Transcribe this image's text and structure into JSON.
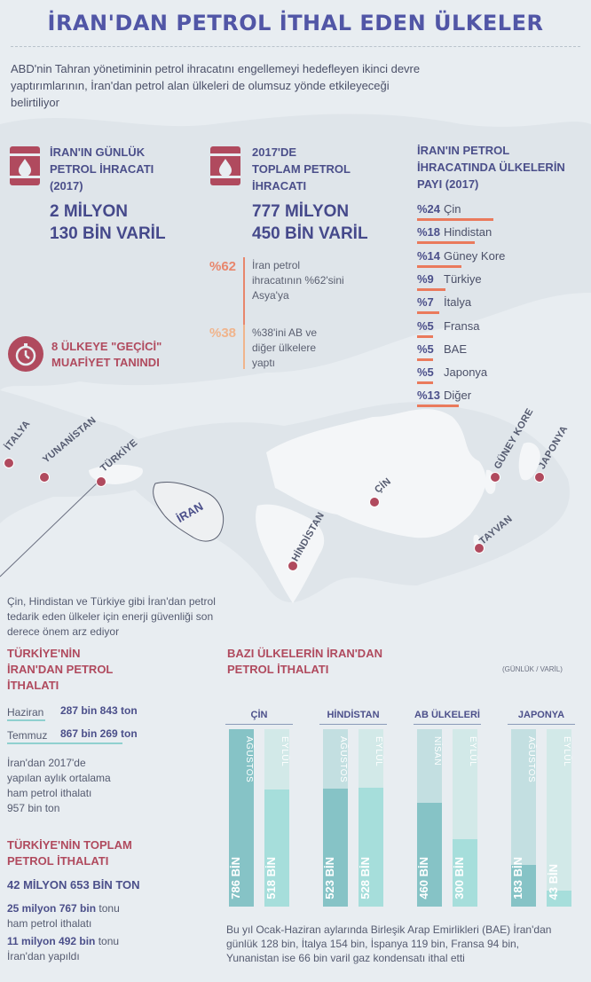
{
  "title": "İRAN'DAN PETROL İTHAL EDEN ÜLKELER",
  "intro": "ABD'nin Tahran yönetiminin petrol ihracatını engellemeyi hedefleyen ikinci devre yaptırımlarının, İran'dan petrol alan ülkeleri de olumsuz yönde etkileyeceği belirtiliyor",
  "daily_export": {
    "label_1": "İRAN'IN GÜNLÜK",
    "label_2": "PETROL İHRACATI",
    "label_3": "(2017)",
    "value_1": "2 MİLYON",
    "value_2": "130 BİN VARİL"
  },
  "total_export": {
    "label_1": "2017'DE",
    "label_2": "TOPLAM PETROL",
    "label_3": "İHRACATI",
    "value_1": "777 MİLYON",
    "value_2": "450 BİN VARİL"
  },
  "asia_share": {
    "pct": "%62",
    "text_1": "İran petrol",
    "text_2": "ihracatının %62'sini",
    "text_3": "Asya'ya"
  },
  "eu_share": {
    "pct": "%38",
    "text_1": "%38'ini AB ve",
    "text_2": "diğer ülkelere",
    "text_3": "yaptı"
  },
  "waiver": {
    "text_1": "8 ÜLKEYE \"GEÇİCİ\"",
    "text_2": "MUAFİYET TANINDI"
  },
  "shares": {
    "title_1": "İRAN'IN PETROL",
    "title_2": "İHRACATINDA ÜLKELERİN",
    "title_3": "PAYI (2017)",
    "items": [
      {
        "pct": "%24",
        "name": "Çin",
        "value": 24
      },
      {
        "pct": "%18",
        "name": "Hindistan",
        "value": 18
      },
      {
        "pct": "%14",
        "name": "Güney Kore",
        "value": 14
      },
      {
        "pct": "%9",
        "name": "Türkiye",
        "value": 9
      },
      {
        "pct": "%7",
        "name": "İtalya",
        "value": 7
      },
      {
        "pct": "%5",
        "name": "Fransa",
        "value": 5
      },
      {
        "pct": "%5",
        "name": "BAE",
        "value": 5
      },
      {
        "pct": "%5",
        "name": "Japonya",
        "value": 5
      },
      {
        "pct": "%13",
        "name": "Diğer",
        "value": 13
      }
    ]
  },
  "map_labels": {
    "italya": "İTALYA",
    "yunanistan": "YUNANİSTAN",
    "turkiye": "TÜRKİYE",
    "iran": "İRAN",
    "cin": "ÇİN",
    "hindistan": "HİNDİSTAN",
    "guney_kore": "GÜNEY KORE",
    "japonya": "JAPONYA",
    "tayvan": "TAYVAN"
  },
  "energy_note": "Çin, Hindistan ve Türkiye gibi İran'dan petrol tedarik eden ülkeler için enerji güvenliği son derece önem arz ediyor",
  "turkey_imports": {
    "title_1": "TÜRKİYE'NİN",
    "title_2": "İRAN'DAN PETROL",
    "title_3": "İTHALATI",
    "rows": [
      {
        "month": "Haziran",
        "value": "287 bin 843 ton",
        "bar": 0.33
      },
      {
        "month": "Temmuz",
        "value": "867 bin 269 ton",
        "bar": 1.0
      }
    ],
    "avg_1": "İran'dan 2017'de",
    "avg_2": "yapılan aylık ortalama",
    "avg_3": "ham petrol ithalatı",
    "avg_4": "957 bin ton"
  },
  "turkey_total": {
    "title_1": "TÜRKİYE'NİN TOPLAM",
    "title_2": "PETROL İTHALATI",
    "value": "42 MİLYON 653 BİN TON",
    "line1_bold": "25 milyon 767 bin",
    "line1_rest": " tonu",
    "line1_b": "ham petrol ithalatı",
    "line2_bold": "11 milyon 492 bin",
    "line2_rest": " tonu",
    "line2_b": "İran'dan yapıldı"
  },
  "chart_data": {
    "type": "bar",
    "title": "BAZI ÜLKELERİN İRAN'DAN PETROL İTHALATI",
    "unit": "(GÜNLÜK / VARİL)",
    "max": 786,
    "groups": [
      {
        "name": "ÇİN",
        "bars": [
          {
            "month": "AĞUSTOS",
            "value": 786,
            "label": "786 BİN"
          },
          {
            "month": "EYLÜL",
            "value": 518,
            "label": "518 BİN"
          }
        ]
      },
      {
        "name": "HİNDİSTAN",
        "bars": [
          {
            "month": "AĞUSTOS",
            "value": 523,
            "label": "523 BİN"
          },
          {
            "month": "EYLÜL",
            "value": 528,
            "label": "528 BİN"
          }
        ]
      },
      {
        "name": "AB ÜLKELERİ",
        "bars": [
          {
            "month": "NİSAN",
            "value": 460,
            "label": "460 BİN"
          },
          {
            "month": "EYLÜL",
            "value": 300,
            "label": "300 BİN"
          }
        ]
      },
      {
        "name": "JAPONYA",
        "bars": [
          {
            "month": "AĞUSTOS",
            "value": 183,
            "label": "183 BİN"
          },
          {
            "month": "EYLÜL",
            "value": 43,
            "label": "43 BİN"
          }
        ]
      }
    ]
  },
  "footnote": "Bu yıl Ocak-Haziran aylarında Birleşik Arap Emirlikleri (BAE) İran'dan günlük 128 bin, İtalya 154 bin, İspanya 119 bin, Fransa 94 bin, Yunanistan ise 66 bin varil gaz kondensatı ithal etti",
  "colors": {
    "accent_red": "#b04a5e",
    "title_blue": "#5156a6",
    "share_orange": "#ea7a5c",
    "bar_first": "#86c3c6",
    "bar_second": "#a6dedb",
    "turkey_line": "#8fd0cf"
  }
}
